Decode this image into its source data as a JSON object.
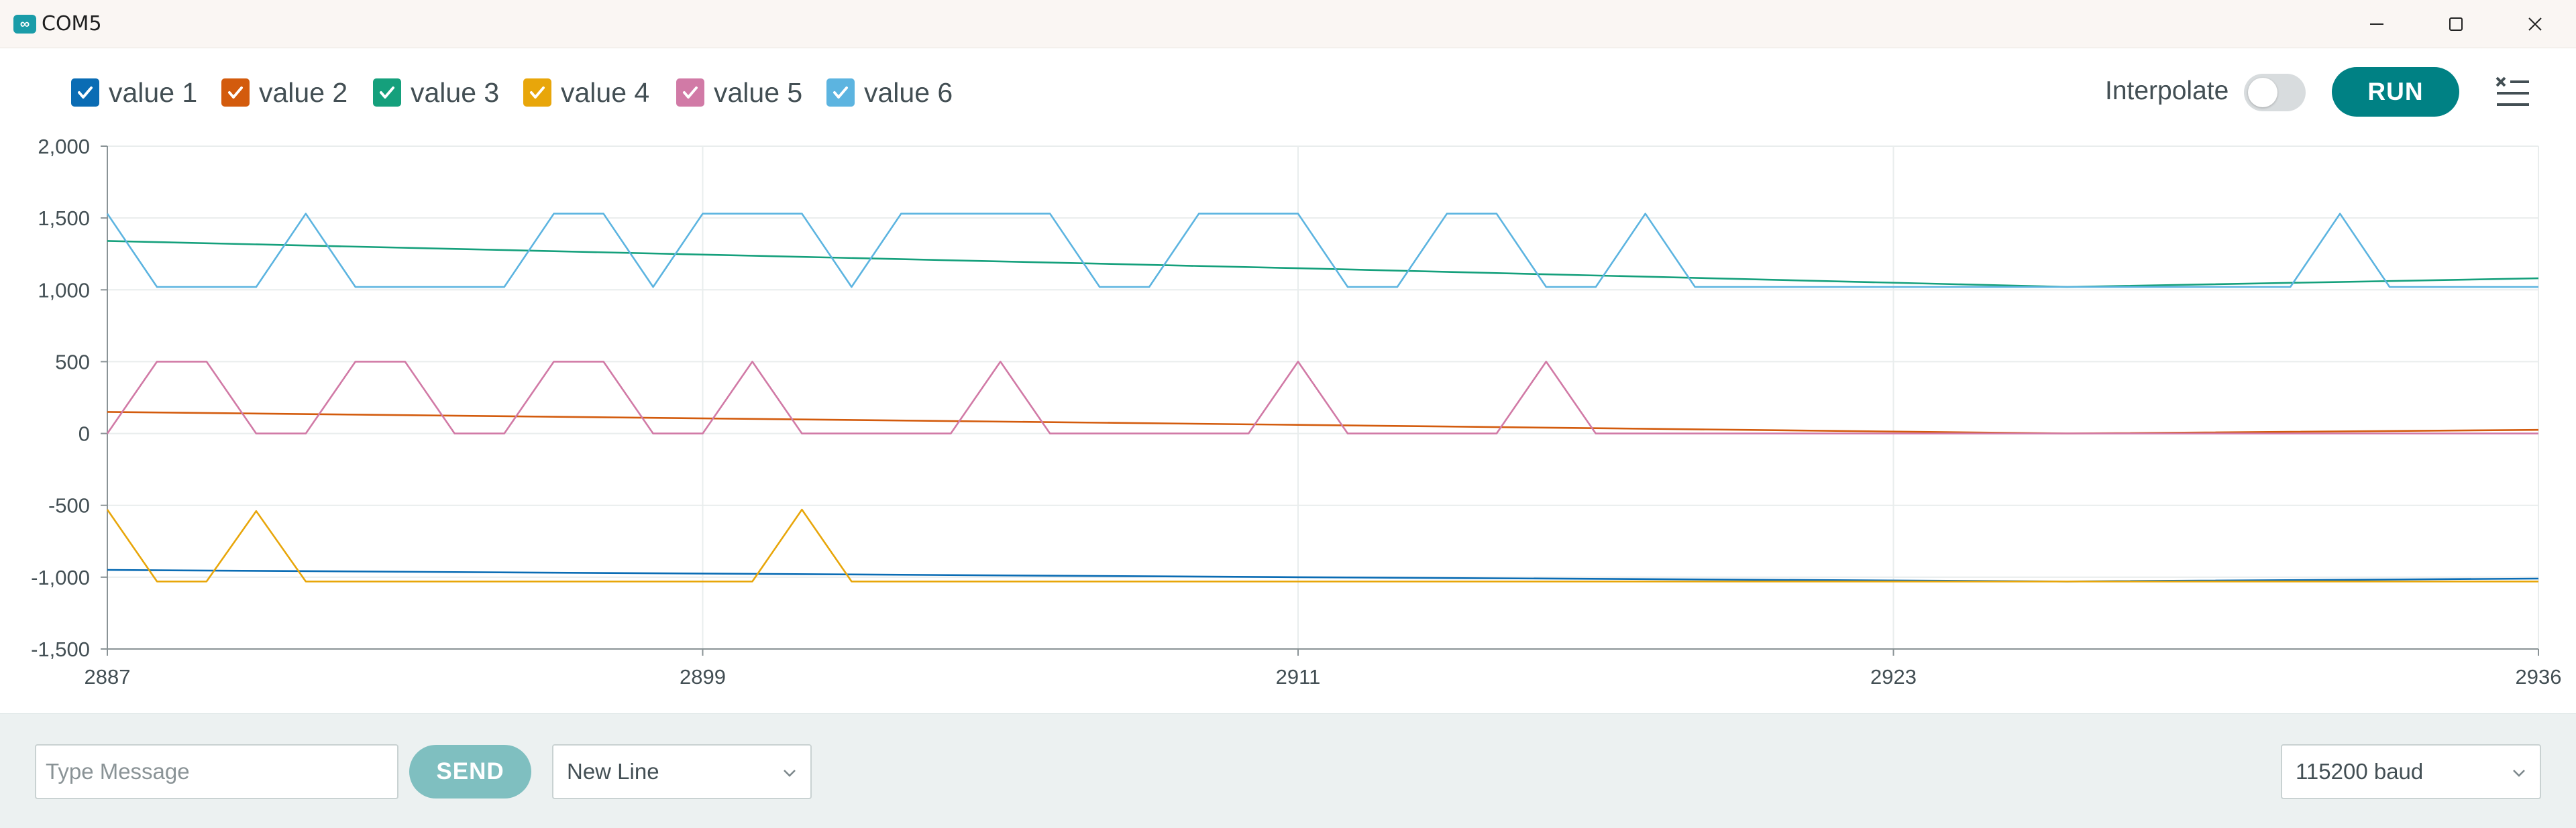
{
  "window": {
    "title": "COM5",
    "app_icon": "infinity-icon"
  },
  "legend": [
    {
      "label": "value 1",
      "color": "#0a6cb4",
      "checked": true
    },
    {
      "label": "value 2",
      "color": "#d35b0d",
      "checked": true
    },
    {
      "label": "value 3",
      "color": "#15a07c",
      "checked": true
    },
    {
      "label": "value 4",
      "color": "#e8a60a",
      "checked": true
    },
    {
      "label": "value 5",
      "color": "#d17aa6",
      "checked": true
    },
    {
      "label": "value 6",
      "color": "#5cb4e0",
      "checked": true
    }
  ],
  "toolbar": {
    "interpolate_label": "Interpolate",
    "interpolate_on": false,
    "run_label": "RUN"
  },
  "bottom": {
    "message_placeholder": "Type Message",
    "send_label": "SEND",
    "line_ending": "New Line",
    "baud": "115200 baud"
  },
  "chart_data": {
    "type": "line",
    "x_ticks": [
      2887,
      2899,
      2911,
      2923,
      2936
    ],
    "xlim": [
      2887,
      2936
    ],
    "ylim": [
      -1500,
      2000
    ],
    "y_ticks": [
      -1500,
      -1000,
      -500,
      0,
      500,
      1000,
      1500,
      2000
    ],
    "y_tick_labels": [
      "-1,500",
      "-1,000",
      "-500",
      "0",
      "500",
      "1,000",
      "1,500",
      "2,000"
    ],
    "grid": true,
    "series": [
      {
        "name": "value 1",
        "color": "#0a6cb4",
        "x": [
          2887,
          2911,
          2926.5,
          2936
        ],
        "y": [
          -950,
          -1000,
          -1030,
          -1010
        ]
      },
      {
        "name": "value 2",
        "color": "#d35b0d",
        "x": [
          2887,
          2911,
          2926.5,
          2936
        ],
        "y": [
          150,
          60,
          0,
          25
        ]
      },
      {
        "name": "value 3",
        "color": "#15a07c",
        "x": [
          2887,
          2911,
          2926.5,
          2936
        ],
        "y": [
          1340,
          1150,
          1020,
          1080
        ]
      },
      {
        "name": "value 4",
        "color": "#e8a60a",
        "x": [
          2887,
          2888,
          2889,
          2890,
          2891,
          2900,
          2901,
          2902,
          2936
        ],
        "y": [
          -530,
          -1030,
          -1030,
          -540,
          -1030,
          -1030,
          -530,
          -1030,
          -1030
        ]
      },
      {
        "name": "value 5",
        "color": "#d17aa6",
        "x": [
          2887,
          2888,
          2889,
          2890,
          2891,
          2892,
          2893,
          2894,
          2895,
          2896,
          2897,
          2898,
          2899,
          2900,
          2901,
          2902,
          2903,
          2904,
          2905,
          2906,
          2910,
          2911,
          2912,
          2915,
          2916,
          2917,
          2936
        ],
        "y": [
          0,
          500,
          500,
          0,
          0,
          500,
          500,
          0,
          0,
          500,
          500,
          0,
          0,
          500,
          0,
          0,
          0,
          0,
          500,
          0,
          0,
          500,
          0,
          0,
          500,
          0,
          0
        ]
      },
      {
        "name": "value 6",
        "color": "#5cb4e0",
        "x": [
          2887,
          2888,
          2890,
          2891,
          2892,
          2895,
          2896,
          2897,
          2898,
          2899,
          2901,
          2902,
          2903,
          2906,
          2907,
          2908,
          2909,
          2911,
          2912,
          2913,
          2914,
          2915,
          2916,
          2917,
          2918,
          2919,
          2920,
          2931,
          2932,
          2933,
          2936
        ],
        "y": [
          1530,
          1020,
          1020,
          1530,
          1020,
          1020,
          1530,
          1530,
          1020,
          1530,
          1530,
          1020,
          1530,
          1530,
          1020,
          1020,
          1530,
          1530,
          1020,
          1020,
          1530,
          1530,
          1020,
          1020,
          1530,
          1020,
          1020,
          1020,
          1530,
          1020,
          1020
        ]
      }
    ]
  }
}
